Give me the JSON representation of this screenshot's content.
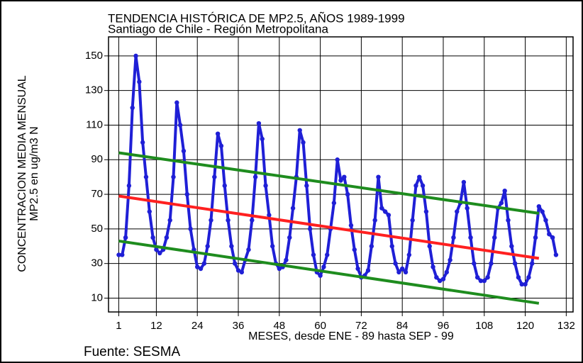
{
  "chart_data": {
    "type": "line",
    "title": "TENDENCIA HISTÓRICA DE MP2.5, AÑOS 1989-1999",
    "subtitle": "Santiago de Chile - Región Metropolitana",
    "ylabel": [
      "CONCENTRACION MEDIA MENSUAL",
      "MP2.5 en ug/m3 N"
    ],
    "xlabel": "MESES, desde ENE - 89 hasta SEP - 99",
    "source": "Fuente: SESMA",
    "xlim": [
      -2,
      134
    ],
    "xticks": [
      1,
      12,
      24,
      36,
      48,
      60,
      72,
      84,
      96,
      108,
      120,
      132
    ],
    "ylim": [
      2,
      161
    ],
    "yticks": [
      10,
      30,
      50,
      70,
      90,
      110,
      130,
      150
    ],
    "grid": true,
    "series": [
      {
        "color": "#1f1fd6",
        "markers": true,
        "x": [
          1,
          2,
          3,
          4,
          5,
          6,
          7,
          8,
          9,
          10,
          11,
          12,
          13,
          14,
          15,
          16,
          17,
          18,
          19,
          20,
          21,
          22,
          23,
          24,
          25,
          26,
          27,
          28,
          29,
          30,
          31,
          32,
          33,
          34,
          35,
          36,
          37,
          38,
          39,
          40,
          41,
          42,
          43,
          44,
          45,
          46,
          47,
          48,
          49,
          50,
          51,
          52,
          53,
          54,
          55,
          56,
          57,
          58,
          59,
          60,
          61,
          62,
          63,
          64,
          65,
          66,
          67,
          68,
          69,
          70,
          71,
          72,
          73,
          74,
          75,
          76,
          77,
          78,
          79,
          80,
          81,
          82,
          83,
          84,
          85,
          86,
          87,
          88,
          89,
          90,
          91,
          92,
          93,
          94,
          95,
          96,
          97,
          98,
          99,
          100,
          101,
          102,
          103,
          104,
          105,
          106,
          107,
          108,
          109,
          110,
          111,
          112,
          113,
          114,
          115,
          116,
          117,
          118,
          119,
          120,
          121,
          122,
          123,
          124,
          125,
          126,
          127,
          128,
          129
        ],
        "values": [
          35,
          35,
          45,
          75,
          120,
          150,
          135,
          100,
          80,
          60,
          45,
          38,
          36,
          38,
          45,
          55,
          80,
          123,
          110,
          95,
          70,
          50,
          38,
          28,
          27,
          30,
          40,
          55,
          80,
          105,
          98,
          75,
          55,
          40,
          30,
          26,
          25,
          32,
          38,
          55,
          80,
          111,
          102,
          75,
          58,
          40,
          30,
          27,
          28,
          32,
          45,
          62,
          80,
          107,
          100,
          75,
          50,
          35,
          25,
          23,
          28,
          35,
          50,
          65,
          90,
          78,
          80,
          70,
          52,
          38,
          27,
          22,
          23,
          26,
          40,
          55,
          80,
          62,
          60,
          58,
          40,
          30,
          25,
          27,
          25,
          35,
          55,
          75,
          80,
          75,
          60,
          40,
          28,
          22,
          20,
          21,
          25,
          32,
          45,
          60,
          65,
          77,
          62,
          45,
          30,
          22,
          20,
          20,
          22,
          30,
          45,
          62,
          65,
          72,
          55,
          40,
          30,
          22,
          18,
          18,
          22,
          30,
          45,
          63,
          60,
          55,
          47,
          45,
          35
        ]
      },
      {
        "color": "#ff2020",
        "x": [
          1,
          124
        ],
        "values": [
          69,
          33
        ]
      },
      {
        "color": "#1e8c1e",
        "x": [
          1,
          124
        ],
        "values": [
          94,
          59
        ]
      },
      {
        "color": "#1e8c1e",
        "x": [
          1,
          124
        ],
        "values": [
          43,
          7
        ]
      }
    ]
  }
}
